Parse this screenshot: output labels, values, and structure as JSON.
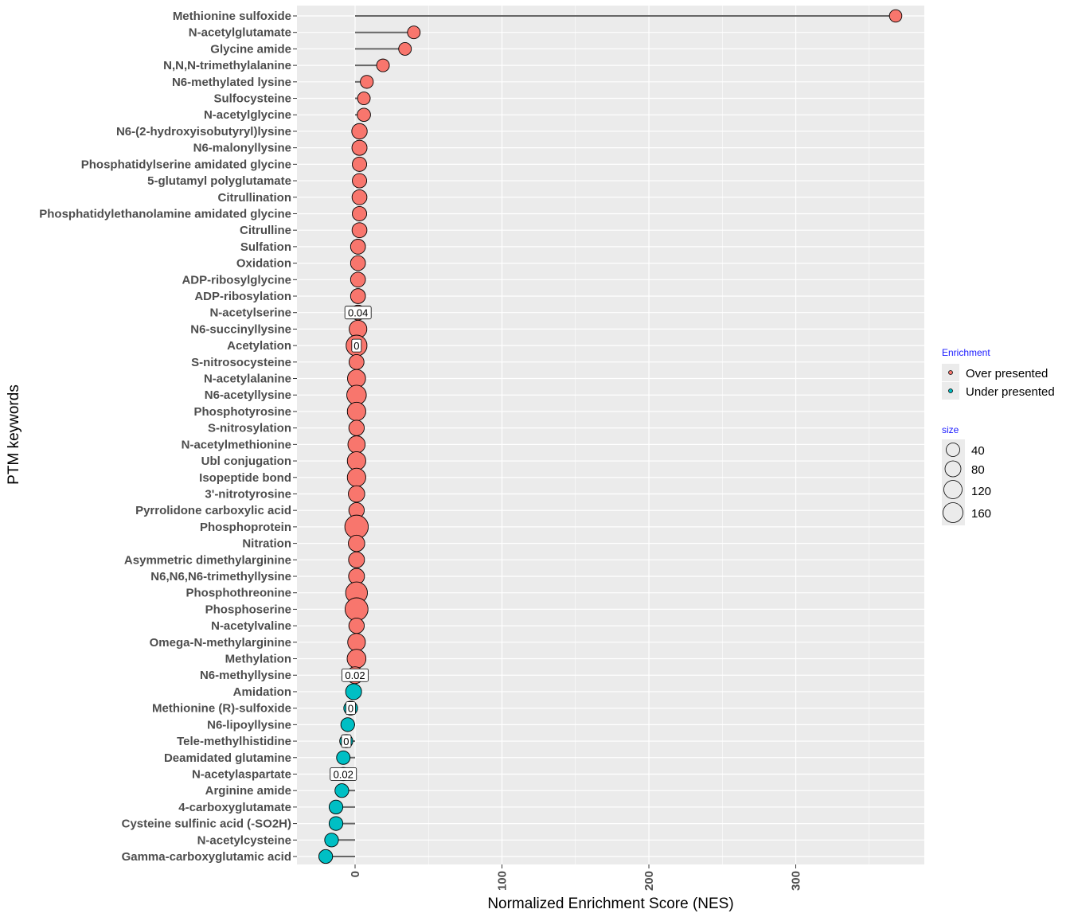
{
  "chart_data": {
    "type": "lollipop",
    "xlabel": "Normalized Enrichment Score (NES)",
    "ylabel": "PTM keywords",
    "xlim": [
      -40,
      390
    ],
    "xticks": [
      0,
      100,
      200,
      300
    ],
    "grid": true,
    "legend": {
      "position": "right",
      "enrichment_title": "Enrichment",
      "enrichment_items": [
        {
          "label": "Over presented",
          "color": "#F8766D"
        },
        {
          "label": "Under presented",
          "color": "#00BFC4"
        }
      ],
      "size_title": "size",
      "size_items": [
        40,
        80,
        120,
        160
      ]
    },
    "colors": {
      "over": "#F8766D",
      "under": "#00BFC4",
      "panel": "#EBEBEB",
      "legend_title": "#1a1aff"
    },
    "points": [
      {
        "label": "Methionine sulfoxide",
        "nes": 368,
        "size": 20,
        "group": "over",
        "pval": ""
      },
      {
        "label": "N-acetylglutamate",
        "nes": 40,
        "size": 22,
        "group": "over",
        "pval": ""
      },
      {
        "label": "Glycine amide",
        "nes": 34,
        "size": 22,
        "group": "over",
        "pval": ""
      },
      {
        "label": "N,N,N-trimethylalanine",
        "nes": 19,
        "size": 22,
        "group": "over",
        "pval": ""
      },
      {
        "label": "N6-methylated lysine",
        "nes": 8,
        "size": 24,
        "group": "over",
        "pval": ""
      },
      {
        "label": "Sulfocysteine",
        "nes": 6,
        "size": 22,
        "group": "over",
        "pval": ""
      },
      {
        "label": "N-acetylglycine",
        "nes": 6,
        "size": 26,
        "group": "over",
        "pval": ""
      },
      {
        "label": "N6-(2-hydroxyisobutyryl)lysine",
        "nes": 3,
        "size": 45,
        "group": "over",
        "pval": ""
      },
      {
        "label": "N6-malonyllysine",
        "nes": 3,
        "size": 42,
        "group": "over",
        "pval": ""
      },
      {
        "label": "Phosphatidylserine amidated glycine",
        "nes": 3,
        "size": 35,
        "group": "over",
        "pval": ""
      },
      {
        "label": "5-glutamyl polyglutamate",
        "nes": 3,
        "size": 35,
        "group": "over",
        "pval": ""
      },
      {
        "label": "Citrullination",
        "nes": 3,
        "size": 40,
        "group": "over",
        "pval": ""
      },
      {
        "label": "Phosphatidylethanolamine amidated glycine",
        "nes": 3,
        "size": 35,
        "group": "over",
        "pval": ""
      },
      {
        "label": "Citrulline",
        "nes": 3,
        "size": 40,
        "group": "over",
        "pval": ""
      },
      {
        "label": "Sulfation",
        "nes": 2,
        "size": 40,
        "group": "over",
        "pval": ""
      },
      {
        "label": "Oxidation",
        "nes": 2,
        "size": 40,
        "group": "over",
        "pval": ""
      },
      {
        "label": "ADP-ribosylglycine",
        "nes": 2,
        "size": 40,
        "group": "over",
        "pval": ""
      },
      {
        "label": "ADP-ribosylation",
        "nes": 2,
        "size": 40,
        "group": "over",
        "pval": ""
      },
      {
        "label": "N-acetylserine",
        "nes": 2,
        "size": 40,
        "group": "over",
        "pval": "0.04"
      },
      {
        "label": "N6-succinyllysine",
        "nes": 2,
        "size": 70,
        "group": "over",
        "pval": ""
      },
      {
        "label": "Acetylation",
        "nes": 1,
        "size": 115,
        "group": "over",
        "pval": "0"
      },
      {
        "label": "S-nitrosocysteine",
        "nes": 1,
        "size": 40,
        "group": "over",
        "pval": ""
      },
      {
        "label": "N-acetylalanine",
        "nes": 1,
        "size": 75,
        "group": "over",
        "pval": ""
      },
      {
        "label": "N6-acetyllysine",
        "nes": 1,
        "size": 95,
        "group": "over",
        "pval": ""
      },
      {
        "label": "Phosphotyrosine",
        "nes": 1,
        "size": 80,
        "group": "over",
        "pval": ""
      },
      {
        "label": "S-nitrosylation",
        "nes": 1,
        "size": 45,
        "group": "over",
        "pval": ""
      },
      {
        "label": "N-acetylmethionine",
        "nes": 1,
        "size": 65,
        "group": "over",
        "pval": ""
      },
      {
        "label": "Ubl conjugation",
        "nes": 1,
        "size": 80,
        "group": "over",
        "pval": ""
      },
      {
        "label": "Isopeptide bond",
        "nes": 1,
        "size": 80,
        "group": "over",
        "pval": ""
      },
      {
        "label": "3'-nitrotyrosine",
        "nes": 1,
        "size": 55,
        "group": "over",
        "pval": ""
      },
      {
        "label": "Pyrrolidone carboxylic acid",
        "nes": 1,
        "size": 45,
        "group": "over",
        "pval": ""
      },
      {
        "label": "Phosphoprotein",
        "nes": 1,
        "size": 160,
        "group": "over",
        "pval": ""
      },
      {
        "label": "Nitration",
        "nes": 1,
        "size": 55,
        "group": "over",
        "pval": ""
      },
      {
        "label": "Asymmetric dimethylarginine",
        "nes": 1,
        "size": 50,
        "group": "over",
        "pval": ""
      },
      {
        "label": "N6,N6,N6-trimethyllysine",
        "nes": 1,
        "size": 50,
        "group": "over",
        "pval": ""
      },
      {
        "label": "Phosphothreonine",
        "nes": 1,
        "size": 130,
        "group": "over",
        "pval": ""
      },
      {
        "label": "Phosphoserine",
        "nes": 1,
        "size": 150,
        "group": "over",
        "pval": ""
      },
      {
        "label": "N-acetylvaline",
        "nes": 1,
        "size": 45,
        "group": "over",
        "pval": ""
      },
      {
        "label": "Omega-N-methylarginine",
        "nes": 1,
        "size": 70,
        "group": "over",
        "pval": ""
      },
      {
        "label": "Methylation",
        "nes": 1,
        "size": 85,
        "group": "over",
        "pval": ""
      },
      {
        "label": "N6-methyllysine",
        "nes": 0,
        "size": 60,
        "group": "over",
        "pval": "0.02"
      },
      {
        "label": "Amidation",
        "nes": -1,
        "size": 50,
        "group": "under",
        "pval": ""
      },
      {
        "label": "Methionine (R)-sulfoxide",
        "nes": -3,
        "size": 30,
        "group": "under",
        "pval": "0"
      },
      {
        "label": "N6-lipoyllysine",
        "nes": -5,
        "size": 30,
        "group": "under",
        "pval": ""
      },
      {
        "label": "Tele-methylhistidine",
        "nes": -6,
        "size": 25,
        "group": "under",
        "pval": "0"
      },
      {
        "label": "Deamidated glutamine",
        "nes": -8,
        "size": 28,
        "group": "under",
        "pval": ""
      },
      {
        "label": "N-acetylaspartate",
        "nes": -8,
        "size": 25,
        "group": "under",
        "pval": "0.02"
      },
      {
        "label": "Arginine amide",
        "nes": -9,
        "size": 30,
        "group": "under",
        "pval": ""
      },
      {
        "label": "4-carboxyglutamate",
        "nes": -13,
        "size": 30,
        "group": "under",
        "pval": ""
      },
      {
        "label": "Cysteine sulfinic acid (-SO2H)",
        "nes": -13,
        "size": 30,
        "group": "under",
        "pval": ""
      },
      {
        "label": "N-acetylcysteine",
        "nes": -16,
        "size": 30,
        "group": "under",
        "pval": ""
      },
      {
        "label": "Gamma-carboxyglutamic acid",
        "nes": -20,
        "size": 30,
        "group": "under",
        "pval": ""
      }
    ]
  }
}
